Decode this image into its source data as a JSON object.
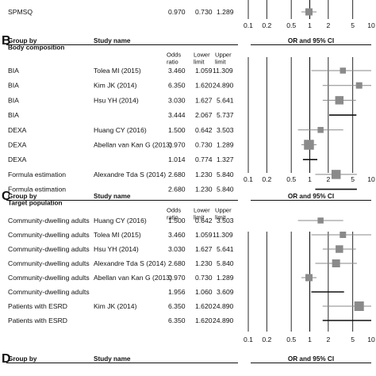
{
  "chart_data": [
    {
      "panel_label": "",
      "type": "forest",
      "headers": {},
      "rows": [
        {
          "group": "SPMSQ",
          "study": "",
          "odds_ratio": 0.97,
          "lower": 0.73,
          "upper": 1.289,
          "odds_ratio_text": "0.970",
          "lower_text": "0.730",
          "upper_text": "1.289",
          "summary": false
        }
      ],
      "x_ticks": [
        "0.1",
        "0.2",
        "0.5",
        "1",
        "2",
        "5",
        "10"
      ],
      "x_scale": "log",
      "x_range": [
        0.1,
        10
      ]
    },
    {
      "panel_label": "B",
      "type": "forest",
      "headers": {
        "group_by": "Group by",
        "group_name": "Body composition",
        "study_name": "Study name",
        "odds_ratio": "Odds ratio",
        "lower_limit": "Lower limit",
        "upper_limit": "Upper limit",
        "plot_title": "OR and 95% CI"
      },
      "rows": [
        {
          "group": "BIA",
          "study": "Tolea MI (2015)",
          "odds_ratio": 3.46,
          "lower": 1.059,
          "upper": 11.309,
          "odds_ratio_text": "3.460",
          "lower_text": "1.059",
          "upper_text": "11.309",
          "summary": false
        },
        {
          "group": "BIA",
          "study": "Kim JK (2014)",
          "odds_ratio": 6.35,
          "lower": 1.62,
          "upper": 24.89,
          "odds_ratio_text": "6.350",
          "lower_text": "1.620",
          "upper_text": "24.890",
          "summary": false
        },
        {
          "group": "BIA",
          "study": "Hsu YH (2014)",
          "odds_ratio": 3.03,
          "lower": 1.627,
          "upper": 5.641,
          "odds_ratio_text": "3.030",
          "lower_text": "1.627",
          "upper_text": "5.641",
          "summary": false
        },
        {
          "group": "BIA",
          "study": "",
          "odds_ratio": 3.444,
          "lower": 2.067,
          "upper": 5.737,
          "odds_ratio_text": "3.444",
          "lower_text": "2.067",
          "upper_text": "5.737",
          "summary": true
        },
        {
          "group": "DEXA",
          "study": "Huang CY (2016)",
          "odds_ratio": 1.5,
          "lower": 0.642,
          "upper": 3.503,
          "odds_ratio_text": "1.500",
          "lower_text": "0.642",
          "upper_text": "3.503",
          "summary": false
        },
        {
          "group": "DEXA",
          "study": "Abellan van Kan G (2013)",
          "odds_ratio": 0.97,
          "lower": 0.73,
          "upper": 1.289,
          "odds_ratio_text": "0.970",
          "lower_text": "0.730",
          "upper_text": "1.289",
          "summary": false
        },
        {
          "group": "DEXA",
          "study": "",
          "odds_ratio": 1.014,
          "lower": 0.774,
          "upper": 1.327,
          "odds_ratio_text": "1.014",
          "lower_text": "0.774",
          "upper_text": "1.327",
          "summary": true
        },
        {
          "group": "Formula estimation",
          "study": "Alexandre Tda S (2014)",
          "odds_ratio": 2.68,
          "lower": 1.23,
          "upper": 5.84,
          "odds_ratio_text": "2.680",
          "lower_text": "1.230",
          "upper_text": "5.840",
          "summary": false
        },
        {
          "group": "Formula estimation",
          "study": "",
          "odds_ratio": 2.68,
          "lower": 1.23,
          "upper": 5.84,
          "odds_ratio_text": "2.680",
          "lower_text": "1.230",
          "upper_text": "5.840",
          "summary": true
        }
      ],
      "x_ticks": [
        "0.1",
        "0.2",
        "0.5",
        "1",
        "2",
        "5",
        "10"
      ],
      "x_scale": "log",
      "x_range": [
        0.1,
        10
      ]
    },
    {
      "panel_label": "C",
      "type": "forest",
      "headers": {
        "group_by": "Group by",
        "group_name": "Target population",
        "study_name": "Study name",
        "odds_ratio": "Odds ratio",
        "lower_limit": "Lower limit",
        "upper_limit": "Upper limit",
        "plot_title": "OR and 95% CI"
      },
      "rows": [
        {
          "group": "Community-dwelling adults",
          "study": "Huang CY (2016)",
          "odds_ratio": 1.5,
          "lower": 0.642,
          "upper": 3.503,
          "odds_ratio_text": "1.500",
          "lower_text": "0.642",
          "upper_text": "3.503",
          "summary": false
        },
        {
          "group": "Community-dwelling adults",
          "study": "Tolea MI (2015)",
          "odds_ratio": 3.46,
          "lower": 1.059,
          "upper": 11.309,
          "odds_ratio_text": "3.460",
          "lower_text": "1.059",
          "upper_text": "11.309",
          "summary": false
        },
        {
          "group": "Community-dwelling adults",
          "study": "Hsu YH (2014)",
          "odds_ratio": 3.03,
          "lower": 1.627,
          "upper": 5.641,
          "odds_ratio_text": "3.030",
          "lower_text": "1.627",
          "upper_text": "5.641",
          "summary": false
        },
        {
          "group": "Community-dwelling adults",
          "study": "Alexandre Tda S (2014)",
          "odds_ratio": 2.68,
          "lower": 1.23,
          "upper": 5.84,
          "odds_ratio_text": "2.680",
          "lower_text": "1.230",
          "upper_text": "5.840",
          "summary": false
        },
        {
          "group": "Community-dwelling adults",
          "study": "Abellan van Kan G (2013)",
          "odds_ratio": 0.97,
          "lower": 0.73,
          "upper": 1.289,
          "odds_ratio_text": "0.970",
          "lower_text": "0.730",
          "upper_text": "1.289",
          "summary": false
        },
        {
          "group": "Community-dwelling adults",
          "study": "",
          "odds_ratio": 1.956,
          "lower": 1.06,
          "upper": 3.609,
          "odds_ratio_text": "1.956",
          "lower_text": "1.060",
          "upper_text": "3.609",
          "summary": true
        },
        {
          "group": "Patients with ESRD",
          "study": "Kim JK (2014)",
          "odds_ratio": 6.35,
          "lower": 1.62,
          "upper": 24.89,
          "odds_ratio_text": "6.350",
          "lower_text": "1.620",
          "upper_text": "24.890",
          "summary": false
        },
        {
          "group": "Patients with ESRD",
          "study": "",
          "odds_ratio": 6.35,
          "lower": 1.62,
          "upper": 24.89,
          "odds_ratio_text": "6.350",
          "lower_text": "1.620",
          "upper_text": "24.890",
          "summary": true
        }
      ],
      "x_ticks": [
        "0.1",
        "0.2",
        "0.5",
        "1",
        "2",
        "5",
        "10"
      ],
      "x_scale": "log",
      "x_range": [
        0.1,
        10
      ]
    },
    {
      "panel_label": "D",
      "type": "forest",
      "headers": {
        "group_by": "Group by",
        "study_name": "Study name",
        "plot_title": "OR and 95% CI"
      },
      "rows": []
    }
  ]
}
